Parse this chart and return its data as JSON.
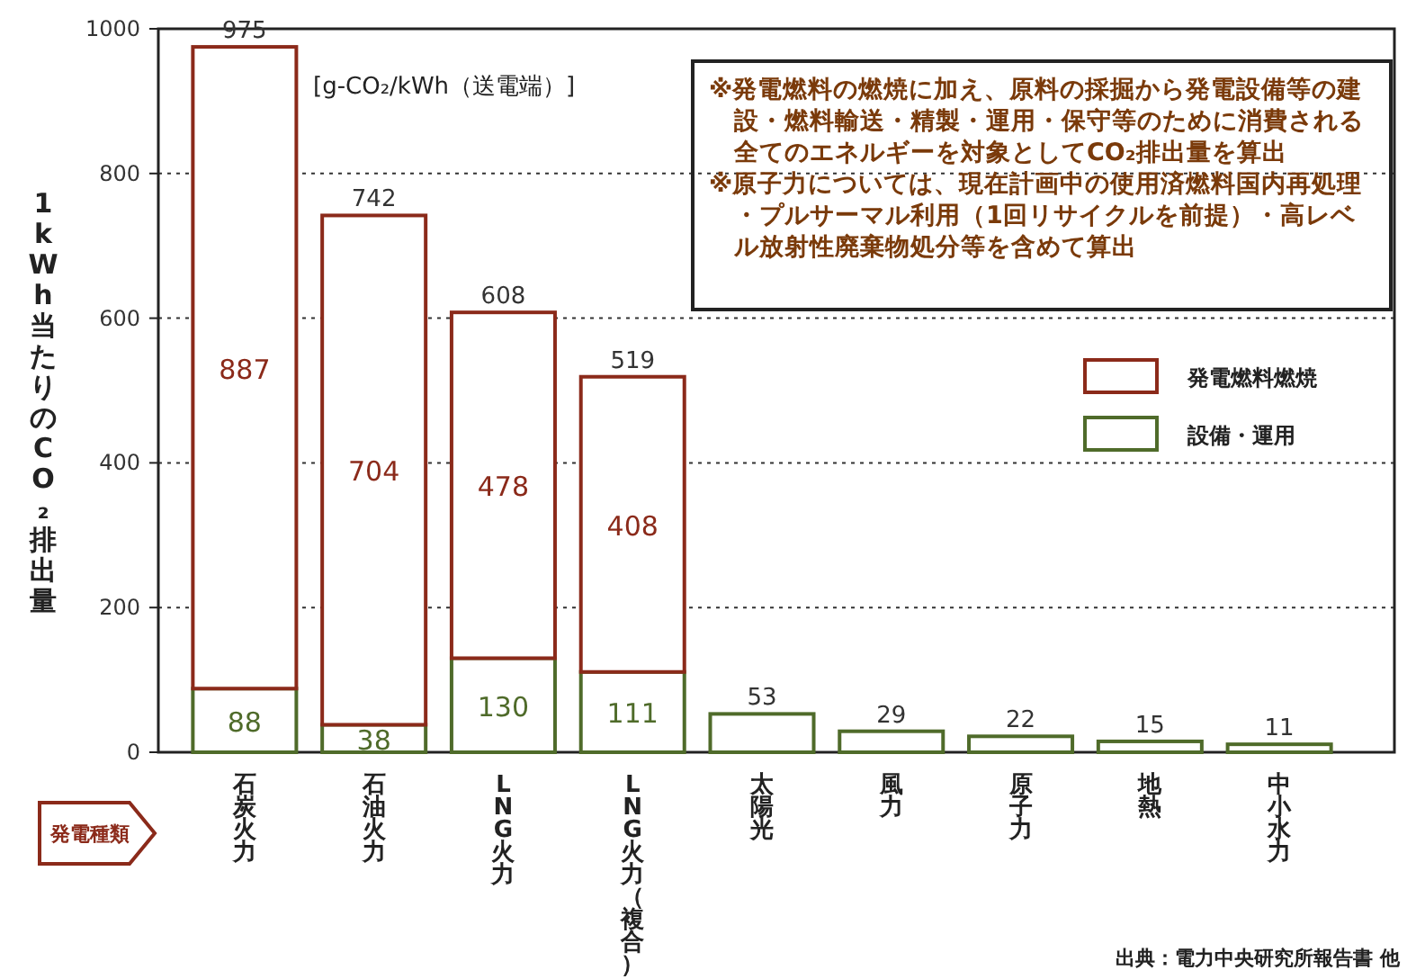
{
  "chart_data": {
    "type": "bar",
    "stacked": true,
    "ylabel": "1kWh当たりのCO₂排出量",
    "xlabel": "発電種類",
    "categories": [
      "石炭火力",
      "石油火力",
      "LNG火力",
      "LNG火力（複合）",
      "太陽光",
      "風力",
      "原子力",
      "地熱",
      "中小水力"
    ],
    "series": [
      {
        "name": "設備・運用",
        "color": "#4f6b2a",
        "values": [
          88,
          38,
          130,
          111,
          53,
          29,
          22,
          15,
          11
        ],
        "value_labels": [
          "88",
          "38",
          "130",
          "111",
          null,
          null,
          null,
          null,
          null
        ]
      },
      {
        "name": "発電燃料燃焼",
        "color": "#8b2a1a",
        "values": [
          887,
          704,
          478,
          408,
          null,
          null,
          null,
          null,
          null
        ],
        "value_labels": [
          "887",
          "704",
          "478",
          "408",
          null,
          null,
          null,
          null,
          null
        ]
      }
    ],
    "totals": [
      "975",
      "742",
      "608",
      "519",
      "53",
      "29",
      "22",
      "15",
      "11"
    ],
    "ylim": [
      0,
      1000
    ],
    "yticks": [
      0,
      200,
      400,
      600,
      800,
      1000
    ],
    "grid": "y",
    "legend": "right",
    "annotations": [
      "[g-CO₂/kWh（送電端）]",
      "※発電燃料の燃焼に加え、原料の採掘から発電設備等の建設・燃料輸送・精製・運用・保守等のために消費される全てのエネルギーを対象としてCO₂排出量を算出",
      "※原子力については、現在計画中の使用済燃料国内再処理・プルサーマル利用（1回リサイクルを前提）・高レベル放射性廃棄物処分等を含めて算出",
      "出典：電力中央研究所報告書 他"
    ]
  }
}
